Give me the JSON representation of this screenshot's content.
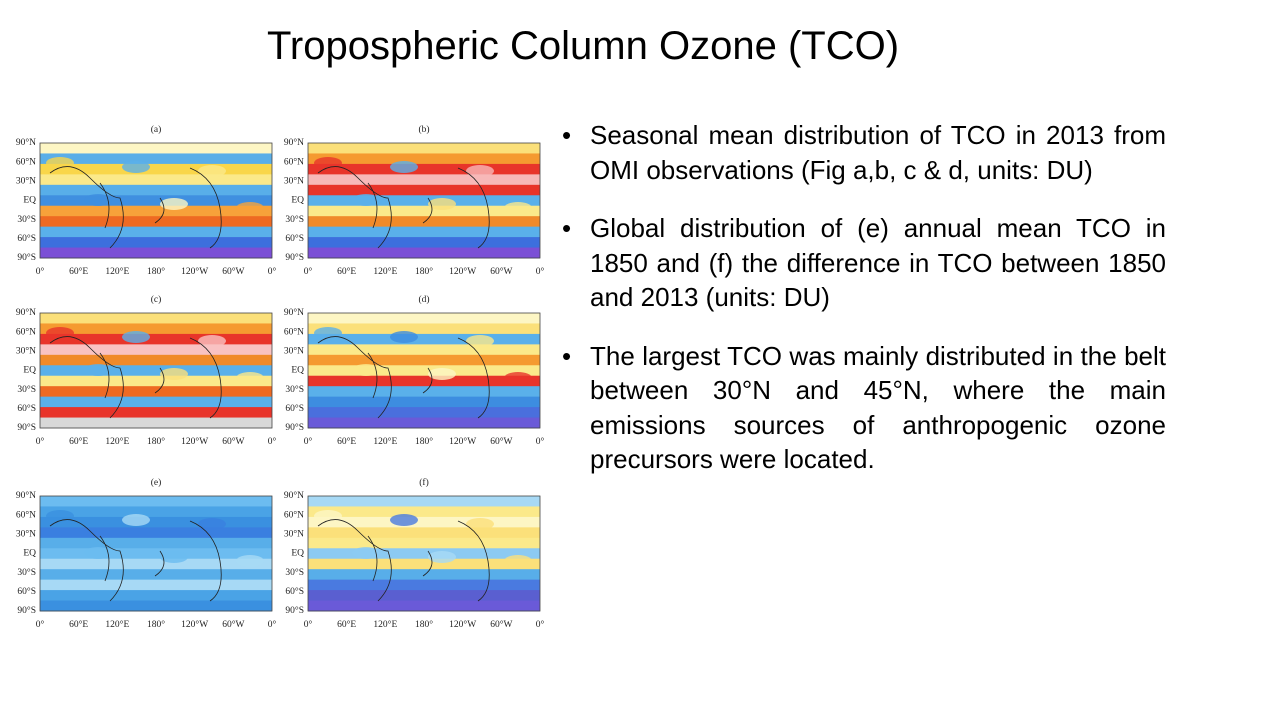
{
  "title": "Tropospheric Column Ozone (TCO)",
  "figure": {
    "panels": [
      {
        "label": "(a)"
      },
      {
        "label": "(b)"
      },
      {
        "label": "(c)"
      },
      {
        "label": "(d)"
      },
      {
        "label": "(e)"
      },
      {
        "label": "(f)"
      }
    ],
    "lat_labels": [
      "90°N",
      "60°N",
      "30°N",
      "EQ",
      "30°S",
      "60°S",
      "90°S"
    ],
    "lon_labels": [
      "0°",
      "60°E",
      "120°E",
      "180°",
      "120°W",
      "60°W",
      "0°"
    ]
  },
  "bullets": [
    "Seasonal mean distribution of TCO in 2013 from OMI observations (Fig a,b, c & d, units: DU)",
    "Global distribution of (e) annual mean TCO in 1850 and (f) the difference in TCO between 1850 and 2013 (units: DU)",
    "The largest TCO was mainly distributed in the belt between 30°N and 45°N, where the main emissions sources of anthropogenic ozone precursors were located."
  ]
}
